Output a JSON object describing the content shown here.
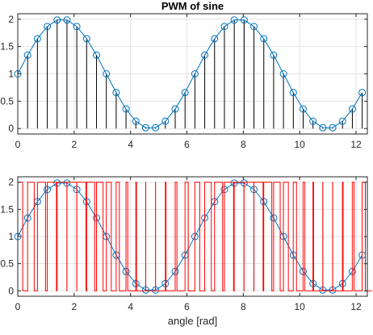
{
  "chart_data": [
    {
      "type": "line",
      "title": "PWM of sine",
      "xlabel": "",
      "ylabel": "",
      "xlim": [
        0,
        12.4
      ],
      "ylim": [
        -0.1,
        2.1
      ],
      "xticks": [
        0,
        2,
        4,
        6,
        8,
        10,
        12
      ],
      "yticks": [
        0,
        0.5,
        1,
        1.5,
        2
      ],
      "xtick_labels": [
        "0",
        "2",
        "4",
        "6",
        "8",
        "10",
        "12"
      ],
      "ytick_labels": [
        "0",
        "0.5",
        "1",
        "1.5",
        "2"
      ],
      "grid": true,
      "legend": "none",
      "colors": {
        "sine": "#0072BD",
        "stems": "#000000",
        "axis": "#262626",
        "grid": "#e3e3e3"
      },
      "series": [
        {
          "style": "line-with-circle-markers-and-stems",
          "x": [
            0,
            0.349,
            0.698,
            1.047,
            1.396,
            1.745,
            2.094,
            2.443,
            2.793,
            3.142,
            3.491,
            3.84,
            4.189,
            4.538,
            4.887,
            5.236,
            5.585,
            5.934,
            6.283,
            6.632,
            6.981,
            7.33,
            7.679,
            8.029,
            8.378,
            8.727,
            9.076,
            9.425,
            9.774,
            10.123,
            10.472,
            10.821,
            11.17,
            11.519,
            11.868,
            12.217
          ],
          "y": [
            1,
            1.342,
            1.643,
            1.866,
            1.985,
            1.985,
            1.866,
            1.643,
            1.342,
            1,
            0.658,
            0.357,
            0.134,
            0.015,
            0.015,
            0.134,
            0.357,
            0.658,
            1,
            1.342,
            1.643,
            1.866,
            1.985,
            1.985,
            1.866,
            1.643,
            1.342,
            1,
            0.658,
            0.357,
            0.134,
            0.015,
            0.015,
            0.134,
            0.357,
            0.658
          ]
        }
      ]
    },
    {
      "type": "line",
      "title": "",
      "xlabel": "angle [rad]",
      "ylabel": "",
      "xlim": [
        0,
        12.4
      ],
      "ylim": [
        -0.1,
        2.1
      ],
      "xticks": [
        0,
        2,
        4,
        6,
        8,
        10,
        12
      ],
      "yticks": [
        0,
        0.5,
        1,
        1.5,
        2
      ],
      "xtick_labels": [
        "0",
        "2",
        "4",
        "6",
        "8",
        "10",
        "12"
      ],
      "ytick_labels": [
        "0",
        "0.5",
        "1",
        "1.5",
        "2"
      ],
      "grid": true,
      "legend": "none",
      "colors": {
        "sine": "#0072BD",
        "pwm": "#FF0000",
        "axis": "#262626",
        "grid": "#e3e3e3"
      },
      "series": [
        {
          "style": "line-with-circle-markers",
          "x": [
            0,
            0.349,
            0.698,
            1.047,
            1.396,
            1.745,
            2.094,
            2.443,
            2.793,
            3.142,
            3.491,
            3.84,
            4.189,
            4.538,
            4.887,
            5.236,
            5.585,
            5.934,
            6.283,
            6.632,
            6.981,
            7.33,
            7.679,
            8.029,
            8.378,
            8.727,
            9.076,
            9.425,
            9.774,
            10.123,
            10.472,
            10.821,
            11.17,
            11.519,
            11.868,
            12.217
          ],
          "y": [
            1,
            1.342,
            1.643,
            1.866,
            1.985,
            1.985,
            1.866,
            1.643,
            1.342,
            1,
            0.658,
            0.357,
            0.134,
            0.015,
            0.015,
            0.134,
            0.357,
            0.658,
            1,
            1.342,
            1.643,
            1.866,
            1.985,
            1.985,
            1.866,
            1.643,
            1.342,
            1,
            0.658,
            0.357,
            0.134,
            0.015,
            0.015,
            0.134,
            0.357,
            0.658
          ]
        },
        {
          "style": "pwm-square-wave",
          "period": 0.349,
          "high": 2,
          "low": 0,
          "duty_cycle": [
            0.5,
            0.671,
            0.821,
            0.933,
            0.993,
            0.993,
            0.933,
            0.821,
            0.671,
            0.5,
            0.329,
            0.179,
            0.067,
            0.007,
            0.007,
            0.067,
            0.179,
            0.329,
            0.5,
            0.671,
            0.821,
            0.933,
            0.993,
            0.993,
            0.933,
            0.821,
            0.671,
            0.5,
            0.329,
            0.179,
            0.067,
            0.007,
            0.007,
            0.067,
            0.179,
            0.329
          ]
        }
      ]
    }
  ]
}
